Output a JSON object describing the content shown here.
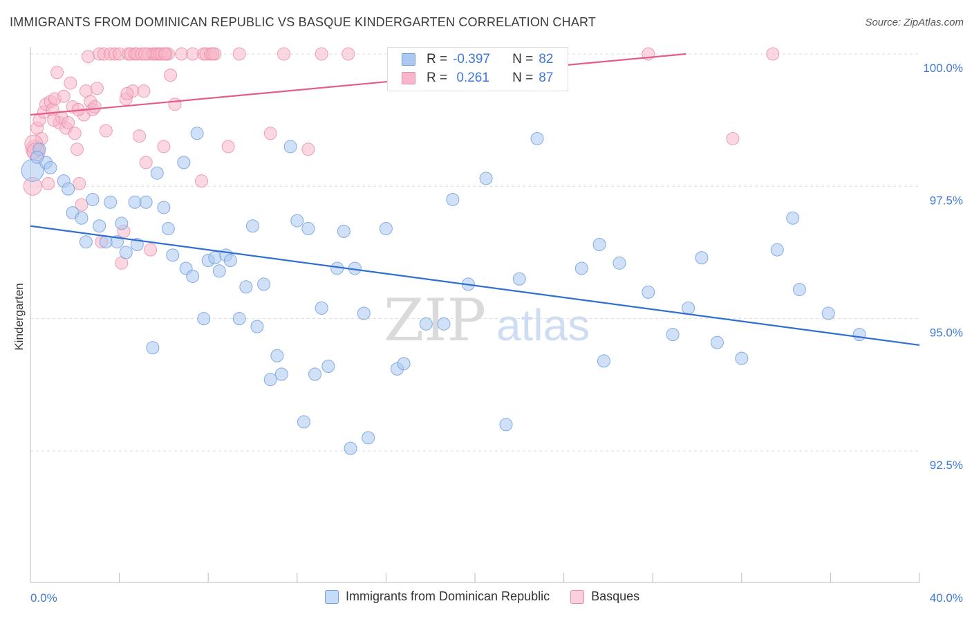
{
  "header": {
    "title": "IMMIGRANTS FROM DOMINICAN REPUBLIC VS BASQUE KINDERGARTEN CORRELATION CHART",
    "source": "Source: ZipAtlas.com"
  },
  "legend": {
    "r_label": "R =",
    "n_label": "N =",
    "series": [
      {
        "name": "Immigrants from Dominican Republic",
        "r": "-0.397",
        "n": "82",
        "fill": "#aac8f0",
        "stroke": "#6e9ee0"
      },
      {
        "name": "Basques",
        "r": " 0.261",
        "n": "87",
        "fill": "#f7b6c9",
        "stroke": "#e98aa8"
      }
    ]
  },
  "watermark": {
    "zip": "ZIP",
    "atlas": "atlas"
  },
  "colors": {
    "blue_line": "#2f6fd0",
    "pink_line": "#e45c88",
    "tick_label": "#3f79d8",
    "grid": "#dddddd"
  },
  "chart_data": {
    "type": "scatter",
    "title": "IMMIGRANTS FROM DOMINICAN REPUBLIC VS BASQUE KINDERGARTEN CORRELATION CHART",
    "xlabel": "",
    "ylabel": "Kindergarten",
    "xlim": [
      0,
      40
    ],
    "ylim": [
      90.0,
      100.4
    ],
    "x_tick_labels": [
      "0.0%",
      "40.0%"
    ],
    "y_ticks": [
      92.5,
      95.0,
      97.5,
      100.0
    ],
    "y_tick_labels": [
      "92.5%",
      "95.0%",
      "97.5%",
      "100.0%"
    ],
    "grid": true,
    "legend_placement": "top-center",
    "series": [
      {
        "name": "Immigrants from Dominican Republic",
        "color": "#6e9ee0",
        "trend": {
          "x": [
            0,
            40
          ],
          "y": [
            96.75,
            94.5
          ]
        },
        "points": [
          [
            0.1,
            97.8
          ],
          [
            0.4,
            98.2
          ],
          [
            0.7,
            97.95
          ],
          [
            0.9,
            97.85
          ],
          [
            1.5,
            97.6
          ],
          [
            1.7,
            97.45
          ],
          [
            1.9,
            97.0
          ],
          [
            2.3,
            96.9
          ],
          [
            2.5,
            96.45
          ],
          [
            2.8,
            97.25
          ],
          [
            3.1,
            96.75
          ],
          [
            3.4,
            96.45
          ],
          [
            3.6,
            97.2
          ],
          [
            3.9,
            96.45
          ],
          [
            4.1,
            96.8
          ],
          [
            4.3,
            96.25
          ],
          [
            4.7,
            97.2
          ],
          [
            4.8,
            96.4
          ],
          [
            5.2,
            97.2
          ],
          [
            5.5,
            94.45
          ],
          [
            5.7,
            97.75
          ],
          [
            6.0,
            97.1
          ],
          [
            6.2,
            96.7
          ],
          [
            6.4,
            96.2
          ],
          [
            6.9,
            97.95
          ],
          [
            7.0,
            95.95
          ],
          [
            7.3,
            95.8
          ],
          [
            7.5,
            98.5
          ],
          [
            7.8,
            95.0
          ],
          [
            8.0,
            96.1
          ],
          [
            8.3,
            96.15
          ],
          [
            8.5,
            95.9
          ],
          [
            8.8,
            96.2
          ],
          [
            9.0,
            96.1
          ],
          [
            9.4,
            95.0
          ],
          [
            9.7,
            95.6
          ],
          [
            10.0,
            96.75
          ],
          [
            10.2,
            94.85
          ],
          [
            10.5,
            95.65
          ],
          [
            10.8,
            93.85
          ],
          [
            11.1,
            94.3
          ],
          [
            11.3,
            93.95
          ],
          [
            11.7,
            98.25
          ],
          [
            12.0,
            96.85
          ],
          [
            12.3,
            93.05
          ],
          [
            12.5,
            96.7
          ],
          [
            12.8,
            93.95
          ],
          [
            13.1,
            95.2
          ],
          [
            13.4,
            94.1
          ],
          [
            13.8,
            95.95
          ],
          [
            14.1,
            96.65
          ],
          [
            14.4,
            92.55
          ],
          [
            14.6,
            95.95
          ],
          [
            15.0,
            95.1
          ],
          [
            15.2,
            92.75
          ],
          [
            16.0,
            96.7
          ],
          [
            16.5,
            94.05
          ],
          [
            16.8,
            94.15
          ],
          [
            17.8,
            94.9
          ],
          [
            18.6,
            94.9
          ],
          [
            19.0,
            97.25
          ],
          [
            19.7,
            95.65
          ],
          [
            20.5,
            97.65
          ],
          [
            21.4,
            93.0
          ],
          [
            22.0,
            95.75
          ],
          [
            22.8,
            98.4
          ],
          [
            24.8,
            95.95
          ],
          [
            25.6,
            96.4
          ],
          [
            25.8,
            94.2
          ],
          [
            26.5,
            96.05
          ],
          [
            27.8,
            95.5
          ],
          [
            28.9,
            94.7
          ],
          [
            29.6,
            95.2
          ],
          [
            30.2,
            96.15
          ],
          [
            30.9,
            94.55
          ],
          [
            32.0,
            94.25
          ],
          [
            33.6,
            96.3
          ],
          [
            34.3,
            96.9
          ],
          [
            34.6,
            95.55
          ],
          [
            35.9,
            95.1
          ],
          [
            37.3,
            94.7
          ],
          [
            0.3,
            98.05
          ]
        ]
      },
      {
        "name": "Basques",
        "color": "#e98aa8",
        "trend": {
          "x": [
            0,
            29.5
          ],
          "y": [
            98.85,
            100.0
          ]
        },
        "points": [
          [
            0.1,
            97.5
          ],
          [
            0.2,
            98.2
          ],
          [
            0.3,
            98.6
          ],
          [
            0.4,
            98.75
          ],
          [
            0.5,
            98.4
          ],
          [
            0.6,
            98.9
          ],
          [
            0.7,
            99.05
          ],
          [
            0.8,
            97.55
          ],
          [
            0.9,
            99.1
          ],
          [
            1.0,
            98.95
          ],
          [
            1.1,
            99.15
          ],
          [
            1.2,
            99.65
          ],
          [
            1.3,
            98.7
          ],
          [
            1.4,
            98.8
          ],
          [
            1.5,
            99.2
          ],
          [
            1.6,
            98.6
          ],
          [
            1.7,
            98.7
          ],
          [
            1.8,
            99.45
          ],
          [
            1.9,
            99.0
          ],
          [
            2.0,
            98.5
          ],
          [
            2.1,
            98.2
          ],
          [
            2.2,
            97.55
          ],
          [
            2.3,
            97.15
          ],
          [
            2.4,
            98.85
          ],
          [
            2.5,
            99.3
          ],
          [
            2.6,
            99.95
          ],
          [
            2.7,
            99.1
          ],
          [
            2.8,
            98.95
          ],
          [
            2.9,
            99.0
          ],
          [
            3.0,
            99.35
          ],
          [
            3.1,
            100.0
          ],
          [
            3.2,
            96.45
          ],
          [
            3.3,
            100.0
          ],
          [
            3.4,
            98.55
          ],
          [
            3.6,
            100.0
          ],
          [
            3.8,
            100.0
          ],
          [
            4.0,
            100.0
          ],
          [
            4.1,
            96.05
          ],
          [
            4.2,
            96.65
          ],
          [
            4.3,
            99.15
          ],
          [
            4.4,
            100.0
          ],
          [
            4.5,
            100.0
          ],
          [
            4.6,
            99.3
          ],
          [
            4.7,
            100.0
          ],
          [
            4.8,
            100.0
          ],
          [
            4.9,
            98.45
          ],
          [
            5.0,
            100.0
          ],
          [
            5.1,
            99.3
          ],
          [
            5.2,
            97.95
          ],
          [
            5.3,
            100.0
          ],
          [
            5.4,
            96.3
          ],
          [
            5.5,
            100.0
          ],
          [
            5.6,
            100.0
          ],
          [
            5.7,
            100.0
          ],
          [
            5.8,
            100.0
          ],
          [
            5.9,
            100.0
          ],
          [
            6.0,
            98.25
          ],
          [
            6.1,
            100.0
          ],
          [
            6.2,
            100.0
          ],
          [
            6.3,
            99.6
          ],
          [
            6.5,
            99.05
          ],
          [
            6.8,
            100.0
          ],
          [
            7.3,
            100.0
          ],
          [
            7.7,
            97.6
          ],
          [
            7.8,
            100.0
          ],
          [
            7.9,
            100.0
          ],
          [
            8.1,
            100.0
          ],
          [
            8.3,
            100.0
          ],
          [
            8.9,
            98.25
          ],
          [
            9.4,
            100.0
          ],
          [
            10.8,
            98.5
          ],
          [
            11.4,
            100.0
          ],
          [
            12.5,
            98.2
          ],
          [
            13.1,
            100.0
          ],
          [
            14.3,
            100.0
          ],
          [
            18.0,
            100.0
          ],
          [
            27.8,
            100.0
          ],
          [
            31.6,
            98.4
          ],
          [
            33.4,
            100.0
          ],
          [
            0.15,
            98.3
          ],
          [
            0.25,
            98.15
          ],
          [
            1.05,
            98.75
          ],
          [
            2.15,
            98.95
          ],
          [
            4.35,
            99.25
          ],
          [
            5.15,
            100.0
          ],
          [
            6.05,
            100.0
          ],
          [
            8.2,
            100.0
          ]
        ]
      }
    ]
  }
}
